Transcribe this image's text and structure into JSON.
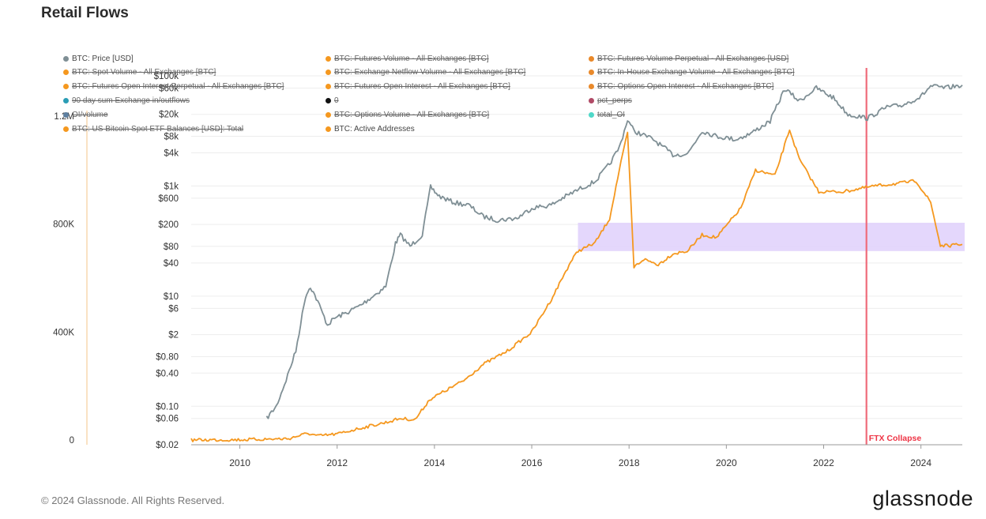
{
  "title": "Retail Flows",
  "footer": {
    "copyright": "© 2024 Glassnode. All Rights Reserved.",
    "brand": "glassnode"
  },
  "colors": {
    "price": "#7f8f95",
    "active": "#f5981f",
    "band": "#dfd0fb",
    "ftx": "#ef6b7a",
    "grid": "#ededed",
    "left_axis": "#f5c48a"
  },
  "legend": [
    {
      "label": "BTC: Price [USD]",
      "color": "#7f8f95",
      "struck": false,
      "col": 0,
      "row": 0
    },
    {
      "label": "BTC: Futures Volume - All Exchanges [BTC]",
      "color": "#f5981f",
      "struck": true,
      "col": 1,
      "row": 0
    },
    {
      "label": "BTC: Futures Volume Perpetual - All Exchanges [USD]",
      "color": "#e9892a",
      "struck": true,
      "col": 2,
      "row": 0
    },
    {
      "label": "BTC: Spot Volume - All Exchanges [BTC]",
      "color": "#f5981f",
      "struck": true,
      "col": 0,
      "row": 1
    },
    {
      "label": "BTC: Exchange Netflow Volume - All Exchanges [BTC]",
      "color": "#f5981f",
      "struck": true,
      "col": 1,
      "row": 1
    },
    {
      "label": "BTC: In-House Exchange Volume - All Exchanges [BTC]",
      "color": "#e9892a",
      "struck": true,
      "col": 2,
      "row": 1
    },
    {
      "label": "BTC: Futures Open Interest Perpetual - All Exchanges [BTC]",
      "color": "#f5981f",
      "struck": true,
      "col": 0,
      "row": 2
    },
    {
      "label": "BTC: Futures Open Interest - All Exchanges [BTC]",
      "color": "#f5981f",
      "struck": true,
      "col": 1,
      "row": 2
    },
    {
      "label": "BTC: Options Open Interest - All Exchanges [BTC]",
      "color": "#e9892a",
      "struck": true,
      "col": 2,
      "row": 2
    },
    {
      "label": "90 day sum Exchange in/outflows",
      "color": "#2a9db5",
      "struck": true,
      "col": 0,
      "row": 3
    },
    {
      "label": "0",
      "color": "#111111",
      "struck": true,
      "col": 1,
      "row": 3
    },
    {
      "label": "pct_perps",
      "color": "#b04a66",
      "struck": true,
      "col": 2,
      "row": 3
    },
    {
      "label": "OI/volume",
      "color": "#5d7fa0",
      "struck": true,
      "col": 0,
      "row": 4
    },
    {
      "label": "BTC: Options Volume - All Exchanges [BTC]",
      "color": "#f5981f",
      "struck": true,
      "col": 1,
      "row": 4
    },
    {
      "label": "total_OI",
      "color": "#4fd8c8",
      "struck": true,
      "col": 2,
      "row": 4
    },
    {
      "label": "BTC: US Bitcoin Spot ETF Balances [USD]: Total",
      "color": "#f5981f",
      "struck": true,
      "col": 0,
      "row": 5
    },
    {
      "label": "BTC: Active Addresses",
      "color": "#f5981f",
      "struck": false,
      "col": 1,
      "row": 5
    }
  ],
  "annotations": {
    "ftx": "FTX Collapse"
  },
  "chart_data": {
    "type": "line",
    "title": "Retail Flows",
    "x_ticks": [
      "2010",
      "2012",
      "2014",
      "2016",
      "2018",
      "2020",
      "2022",
      "2024"
    ],
    "x_range": [
      2009.0,
      2024.85
    ],
    "y_left": {
      "ticks": [
        "0",
        "400K",
        "800K",
        "1.2M"
      ],
      "range": [
        0,
        1200000
      ]
    },
    "y_right": {
      "scale": "log",
      "ticks": [
        "$0.02",
        "$0.06",
        "$0.10",
        "$0.40",
        "$0.80",
        "$2",
        "$6",
        "$10",
        "$40",
        "$80",
        "$200",
        "$600",
        "$1k",
        "$4k",
        "$8k",
        "$20k",
        "$60k",
        "$100k"
      ],
      "range": [
        0.02,
        100000
      ]
    },
    "series": [
      {
        "name": "BTC: Price [USD]",
        "axis": "right",
        "x": [
          2010.55,
          2010.75,
          2010.95,
          2011.15,
          2011.35,
          2011.45,
          2011.6,
          2011.8,
          2011.95,
          2012.2,
          2012.5,
          2012.8,
          2013.0,
          2013.2,
          2013.3,
          2013.5,
          2013.75,
          2013.92,
          2014.1,
          2014.4,
          2014.7,
          2015.0,
          2015.3,
          2015.7,
          2016.0,
          2016.4,
          2016.6,
          2017.0,
          2017.3,
          2017.6,
          2017.8,
          2017.97,
          2018.1,
          2018.5,
          2018.9,
          2019.2,
          2019.5,
          2019.8,
          2020.2,
          2020.5,
          2020.9,
          2021.2,
          2021.5,
          2021.85,
          2022.2,
          2022.5,
          2022.9,
          2023.3,
          2023.6,
          2024.0,
          2024.2,
          2024.5,
          2024.85
        ],
        "y": [
          0.06,
          0.1,
          0.3,
          1,
          10,
          15,
          8,
          3,
          4,
          5,
          7,
          11,
          15,
          90,
          130,
          80,
          130,
          950,
          650,
          500,
          450,
          280,
          240,
          260,
          400,
          450,
          580,
          900,
          1200,
          2500,
          5000,
          16000,
          10000,
          7000,
          3700,
          3800,
          10000,
          8000,
          7000,
          9000,
          15000,
          58000,
          35000,
          60000,
          40000,
          20000,
          17000,
          27000,
          29000,
          42000,
          65000,
          60000,
          68000
        ]
      },
      {
        "name": "BTC: Active Addresses",
        "axis": "left",
        "x": [
          2009.0,
          2010.0,
          2011.0,
          2011.4,
          2011.6,
          2012.0,
          2012.5,
          2013.0,
          2013.3,
          2013.6,
          2013.9,
          2014.2,
          2014.6,
          2015.0,
          2015.5,
          2016.0,
          2016.4,
          2016.8,
          2016.95,
          2017.3,
          2017.6,
          2017.8,
          2017.97,
          2018.1,
          2018.3,
          2018.6,
          2018.9,
          2019.2,
          2019.5,
          2019.8,
          2020.3,
          2020.6,
          2021.0,
          2021.3,
          2021.5,
          2021.9,
          2022.4,
          2022.7,
          2023.0,
          2023.5,
          2023.9,
          2024.2,
          2024.4,
          2024.6,
          2024.85
        ],
        "y": [
          0,
          1000,
          5000,
          25000,
          15000,
          22000,
          45000,
          65000,
          80000,
          75000,
          150000,
          180000,
          220000,
          280000,
          330000,
          400000,
          520000,
          660000,
          700000,
          730000,
          820000,
          1000000,
          1140000,
          640000,
          670000,
          650000,
          690000,
          700000,
          760000,
          750000,
          860000,
          1000000,
          980000,
          1150000,
          1040000,
          920000,
          920000,
          930000,
          940000,
          950000,
          960000,
          880000,
          720000,
          720000,
          725000
        ]
      }
    ],
    "shaded_band": {
      "axis": "left",
      "x_range": [
        2016.95,
        2024.85
      ],
      "y_range": [
        700000,
        805000
      ]
    },
    "vlines": [
      {
        "x": 2022.88,
        "label": "FTX Collapse"
      }
    ],
    "grid": true,
    "legend_position": "top"
  }
}
